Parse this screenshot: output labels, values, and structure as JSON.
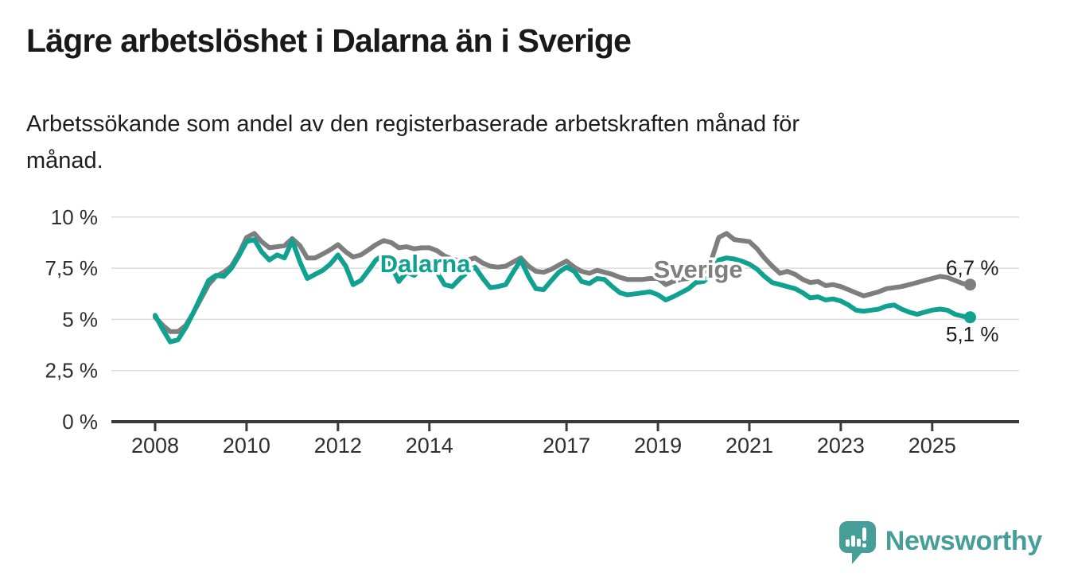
{
  "header": {
    "title": "Lägre arbetslöshet i Dalarna än i Sverige",
    "subtitle_lines": [
      "Arbetssökande som andel av den registerbaserade arbetskraften månad för",
      "månad."
    ]
  },
  "footer": {
    "brand": "Newsworthy",
    "brand_color": "#459e98",
    "logo_icon": "speech-bubble-bar-chart"
  },
  "chart_data": {
    "type": "line",
    "title": "",
    "xlabel": "",
    "ylabel": "",
    "grid": true,
    "xlim": [
      2008,
      2025.83
    ],
    "ylim": [
      0,
      10.9
    ],
    "xticks": [
      2008,
      2010,
      2012,
      2014,
      2017,
      2019,
      2021,
      2023,
      2025
    ],
    "xtick_labels": [
      "2008",
      "2010",
      "2012",
      "2014",
      "2017",
      "2019",
      "2021",
      "2023",
      "2025"
    ],
    "yticks": [
      0,
      2.5,
      5,
      7.5,
      10
    ],
    "ytick_labels": [
      "0 %",
      "2,5 %",
      "5 %",
      "7,5 %",
      "10 %"
    ],
    "legend_position": "inline-labels",
    "x": [
      2008,
      2008.17,
      2008.33,
      2008.5,
      2008.67,
      2008.83,
      2009,
      2009.17,
      2009.33,
      2009.5,
      2009.67,
      2009.83,
      2010,
      2010.17,
      2010.33,
      2010.5,
      2010.67,
      2010.83,
      2011,
      2011.17,
      2011.33,
      2011.5,
      2011.67,
      2011.83,
      2012,
      2012.17,
      2012.33,
      2012.5,
      2012.67,
      2012.83,
      2013,
      2013.17,
      2013.33,
      2013.5,
      2013.67,
      2013.83,
      2014,
      2014.17,
      2014.33,
      2014.5,
      2014.67,
      2014.83,
      2015,
      2015.17,
      2015.33,
      2015.5,
      2015.67,
      2015.83,
      2016,
      2016.17,
      2016.33,
      2016.5,
      2016.67,
      2016.83,
      2017,
      2017.17,
      2017.33,
      2017.5,
      2017.67,
      2017.83,
      2018,
      2018.17,
      2018.33,
      2018.5,
      2018.67,
      2018.83,
      2019,
      2019.17,
      2019.33,
      2019.5,
      2019.67,
      2019.83,
      2020,
      2020.17,
      2020.33,
      2020.5,
      2020.67,
      2020.83,
      2021,
      2021.17,
      2021.33,
      2021.5,
      2021.67,
      2021.83,
      2022,
      2022.17,
      2022.33,
      2022.5,
      2022.67,
      2022.83,
      2023,
      2023.17,
      2023.33,
      2023.5,
      2023.67,
      2023.83,
      2024,
      2024.17,
      2024.33,
      2024.5,
      2024.67,
      2024.83,
      2025,
      2025.17,
      2025.33,
      2025.5,
      2025.67,
      2025.83
    ],
    "series": [
      {
        "name": "Sverige",
        "color": "#7e7e7e",
        "end_label": "6,7 %",
        "label_x": 2019.88,
        "label_y": 7.42,
        "values": [
          5.1,
          4.7,
          4.4,
          4.4,
          4.7,
          5.3,
          6.0,
          6.7,
          7.1,
          7.3,
          7.6,
          8.2,
          9.0,
          9.2,
          8.8,
          8.5,
          8.55,
          8.6,
          8.95,
          8.6,
          8.0,
          8.0,
          8.2,
          8.4,
          8.65,
          8.3,
          8.05,
          8.15,
          8.4,
          8.65,
          8.85,
          8.75,
          8.5,
          8.55,
          8.45,
          8.5,
          8.5,
          8.35,
          8.1,
          7.95,
          7.85,
          7.9,
          8.0,
          7.75,
          7.6,
          7.55,
          7.6,
          7.8,
          8.0,
          7.6,
          7.35,
          7.3,
          7.45,
          7.65,
          7.85,
          7.55,
          7.35,
          7.25,
          7.4,
          7.3,
          7.2,
          7.05,
          6.95,
          6.95,
          6.95,
          7.0,
          7.0,
          6.7,
          6.85,
          6.95,
          7.0,
          7.1,
          7.3,
          7.9,
          9.0,
          9.2,
          8.9,
          8.85,
          8.8,
          8.45,
          8.0,
          7.6,
          7.25,
          7.35,
          7.2,
          6.95,
          6.8,
          6.85,
          6.65,
          6.7,
          6.6,
          6.45,
          6.3,
          6.15,
          6.25,
          6.35,
          6.5,
          6.55,
          6.6,
          6.7,
          6.8,
          6.9,
          7.0,
          7.1,
          7.05,
          6.9,
          6.75,
          6.7
        ]
      },
      {
        "name": "Dalarna",
        "color": "#10a191",
        "end_label": "5,1 %",
        "label_x": 2013.91,
        "label_y": 7.7,
        "values": [
          5.2,
          4.5,
          3.9,
          4.0,
          4.6,
          5.3,
          6.1,
          6.9,
          7.15,
          7.1,
          7.5,
          8.1,
          8.8,
          8.9,
          8.3,
          7.9,
          8.15,
          8.0,
          8.85,
          7.8,
          7.0,
          7.2,
          7.4,
          7.7,
          8.15,
          7.6,
          6.7,
          6.9,
          7.4,
          7.9,
          8.15,
          7.6,
          6.85,
          7.3,
          7.15,
          7.5,
          7.8,
          7.3,
          6.7,
          6.6,
          7.0,
          7.3,
          7.55,
          7.0,
          6.55,
          6.6,
          6.7,
          7.3,
          7.9,
          7.1,
          6.5,
          6.45,
          6.9,
          7.3,
          7.55,
          7.35,
          6.85,
          6.75,
          7.0,
          6.95,
          6.6,
          6.3,
          6.2,
          6.25,
          6.3,
          6.35,
          6.2,
          5.95,
          6.1,
          6.3,
          6.5,
          6.8,
          6.85,
          7.2,
          7.9,
          8.0,
          7.95,
          7.85,
          7.7,
          7.45,
          7.1,
          6.8,
          6.7,
          6.6,
          6.5,
          6.3,
          6.05,
          6.1,
          5.95,
          6.0,
          5.9,
          5.7,
          5.45,
          5.4,
          5.45,
          5.5,
          5.65,
          5.7,
          5.5,
          5.35,
          5.25,
          5.35,
          5.45,
          5.5,
          5.45,
          5.25,
          5.15,
          5.1
        ]
      }
    ]
  }
}
